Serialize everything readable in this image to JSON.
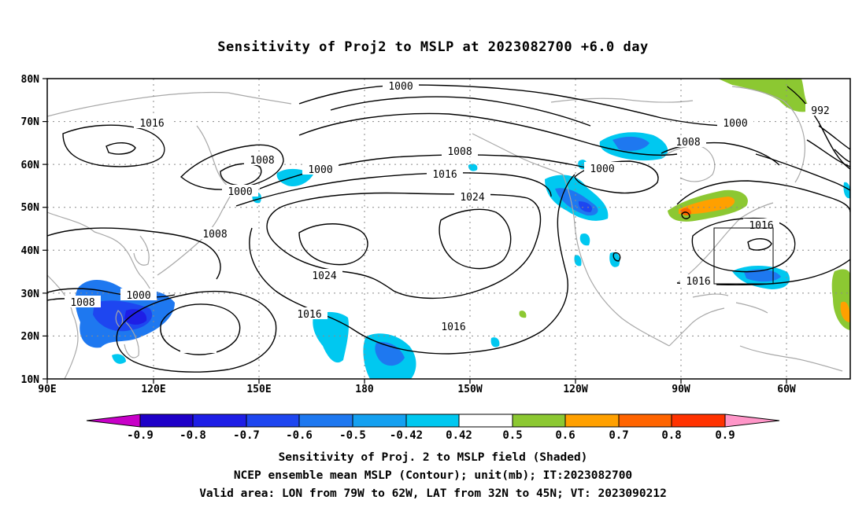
{
  "title": "Sensitivity of Proj2 to MSLP at 2023082700 +6.0 day",
  "axes": {
    "lat_labels": [
      "80N",
      "70N",
      "60N",
      "50N",
      "40N",
      "30N",
      "20N",
      "10N"
    ],
    "lon_labels": [
      "90E",
      "120E",
      "150E",
      "180",
      "150W",
      "120W",
      "90W",
      "60W"
    ]
  },
  "contours": {
    "labels": [
      "1000",
      "1016",
      "1008",
      "1000",
      "1000",
      "1008",
      "1016",
      "1024",
      "1008",
      "1000",
      "1000",
      "1008",
      "992",
      "1024",
      "1016",
      "1016",
      "1016",
      "1016",
      "1008",
      "1000"
    ]
  },
  "colorbar": {
    "labels": [
      "-0.9",
      "-0.8",
      "-0.7",
      "-0.6",
      "-0.5",
      "-0.42",
      "0.42",
      "0.5",
      "0.6",
      "0.7",
      "0.8",
      "0.9"
    ],
    "colors": [
      "#c800c8",
      "#1e00c8",
      "#1e1ee6",
      "#1e46f0",
      "#1e78f0",
      "#14a0f0",
      "#00c8f0",
      "#ffffff",
      "#8cc832",
      "#ffa000",
      "#ff6400",
      "#ff3200",
      "#ff0000",
      "#ff96c8"
    ]
  },
  "captions": {
    "line1": "Sensitivity of Proj. 2 to MSLP field (Shaded)",
    "line2": "NCEP ensemble mean MSLP (Contour); unit(mb); IT:2023082700",
    "line3": "Valid area: LON from 79W to 62W, LAT from 32N to 45N; VT: 2023090212"
  }
}
